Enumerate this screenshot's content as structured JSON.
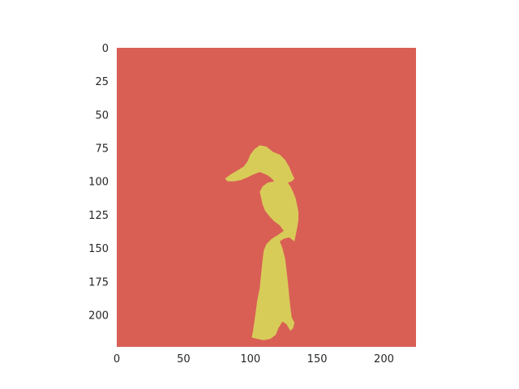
{
  "chart_data": {
    "type": "heatmap",
    "title": "",
    "xlabel": "",
    "ylabel": "",
    "xlim": [
      0,
      224
    ],
    "ylim": [
      224,
      0
    ],
    "grid": false,
    "colors": {
      "background": "#d95f55",
      "mask": "#d8cc59"
    },
    "x_ticks": [
      {
        "value": 0,
        "label": "0"
      },
      {
        "value": 50,
        "label": "50"
      },
      {
        "value": 100,
        "label": "100"
      },
      {
        "value": 150,
        "label": "150"
      },
      {
        "value": 200,
        "label": "200"
      }
    ],
    "y_ticks": [
      {
        "value": 0,
        "label": "0"
      },
      {
        "value": 25,
        "label": "25"
      },
      {
        "value": 50,
        "label": "50"
      },
      {
        "value": 75,
        "label": "75"
      },
      {
        "value": 100,
        "label": "100"
      },
      {
        "value": 125,
        "label": "125"
      },
      {
        "value": 150,
        "label": "150"
      },
      {
        "value": 175,
        "label": "175"
      },
      {
        "value": 200,
        "label": "200"
      }
    ],
    "classes": [
      {
        "value": 0,
        "color": "#d95f55"
      },
      {
        "value": 1,
        "color": "#d8cc59"
      }
    ],
    "mask_region_outline": [
      [
        107,
        73
      ],
      [
        112,
        74
      ],
      [
        117,
        78
      ],
      [
        122,
        80
      ],
      [
        126,
        84
      ],
      [
        129,
        89
      ],
      [
        131,
        94
      ],
      [
        133,
        98
      ],
      [
        131,
        100
      ],
      [
        128,
        101
      ],
      [
        130,
        104
      ],
      [
        132,
        108
      ],
      [
        134,
        113
      ],
      [
        135,
        118
      ],
      [
        136,
        123
      ],
      [
        136,
        129
      ],
      [
        135,
        135
      ],
      [
        134,
        140
      ],
      [
        133,
        145
      ],
      [
        129,
        142
      ],
      [
        125,
        143
      ],
      [
        122,
        145
      ],
      [
        124,
        150
      ],
      [
        126,
        158
      ],
      [
        127,
        166
      ],
      [
        128,
        175
      ],
      [
        129,
        185
      ],
      [
        130,
        195
      ],
      [
        131,
        202
      ],
      [
        133,
        206
      ],
      [
        132,
        210
      ],
      [
        130,
        212
      ],
      [
        127,
        207
      ],
      [
        124,
        205
      ],
      [
        121,
        210
      ],
      [
        119,
        215
      ],
      [
        115,
        218
      ],
      [
        110,
        219
      ],
      [
        105,
        218
      ],
      [
        101,
        217
      ],
      [
        102,
        212
      ],
      [
        103,
        205
      ],
      [
        104,
        198
      ],
      [
        105,
        190
      ],
      [
        107,
        180
      ],
      [
        108,
        170
      ],
      [
        109,
        160
      ],
      [
        110,
        152
      ],
      [
        112,
        147
      ],
      [
        116,
        143
      ],
      [
        121,
        140
      ],
      [
        125,
        137
      ],
      [
        122,
        133
      ],
      [
        118,
        130
      ],
      [
        115,
        127
      ],
      [
        111,
        122
      ],
      [
        109,
        117
      ],
      [
        108,
        112
      ],
      [
        107,
        108
      ],
      [
        109,
        104
      ],
      [
        113,
        101
      ],
      [
        118,
        100
      ],
      [
        115,
        97
      ],
      [
        112,
        95
      ],
      [
        107,
        93
      ],
      [
        102,
        95
      ],
      [
        98,
        97
      ],
      [
        93,
        99
      ],
      [
        88,
        100
      ],
      [
        83,
        100
      ],
      [
        81,
        98
      ],
      [
        85,
        95
      ],
      [
        90,
        92
      ],
      [
        95,
        89
      ],
      [
        98,
        85
      ],
      [
        100,
        80
      ],
      [
        103,
        76
      ]
    ]
  }
}
